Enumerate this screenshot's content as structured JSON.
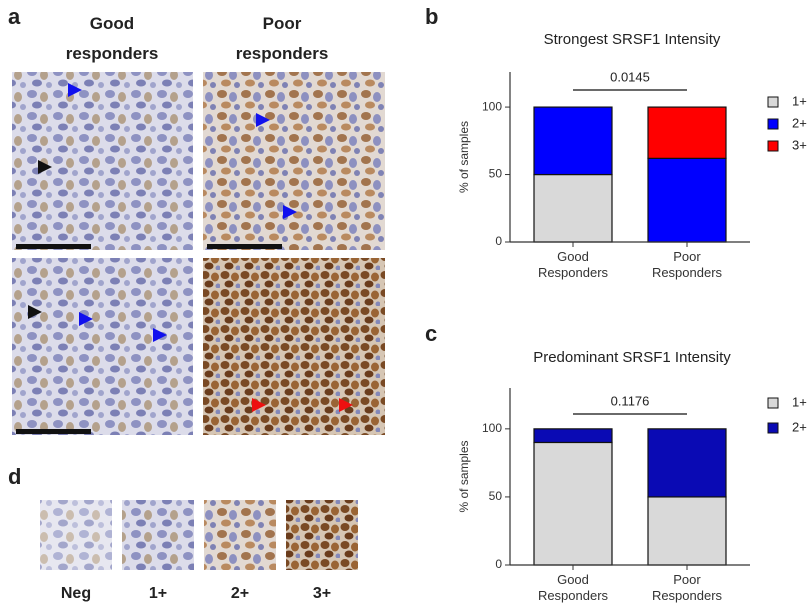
{
  "panel_labels": [
    "a",
    "b",
    "c",
    "d"
  ],
  "panel_a": {
    "columns": [
      "Good responders",
      "Poor responders"
    ]
  },
  "panel_d": {
    "labels": [
      "Neg",
      "1+",
      "2+",
      "3+"
    ]
  },
  "chart_data": [
    {
      "type": "bar",
      "stacked": true,
      "title": "Strongest SRSF1 Intensity",
      "y_label": "% of samples",
      "categories": [
        "Good Responders",
        "Poor Responders"
      ],
      "series": [
        {
          "name": "1+",
          "color": "#d9d9d9",
          "values": [
            50,
            0
          ]
        },
        {
          "name": "2+",
          "color": "#0000ff",
          "values": [
            50,
            62
          ]
        },
        {
          "name": "3+",
          "color": "#ff0000",
          "values": [
            0,
            38
          ]
        }
      ],
      "ylim": [
        0,
        126
      ],
      "yticks": [
        0,
        50,
        100
      ],
      "annotation": "0.0145",
      "legend": "right"
    },
    {
      "type": "bar",
      "stacked": true,
      "title": "Predominant SRSF1 Intensity",
      "y_label": "% of samples",
      "categories": [
        "Good Responders",
        "Poor Responders"
      ],
      "series": [
        {
          "name": "1+",
          "color": "#d9d9d9",
          "values": [
            90,
            50
          ]
        },
        {
          "name": "2+",
          "color": "#0a0ab4",
          "values": [
            10,
            50
          ]
        }
      ],
      "ylim": [
        0,
        130
      ],
      "yticks": [
        0,
        50,
        100
      ],
      "annotation": "0.1176",
      "legend": "right"
    }
  ]
}
